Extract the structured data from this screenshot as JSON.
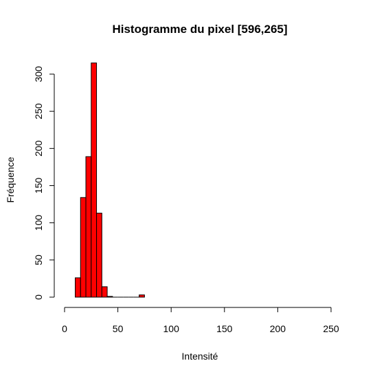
{
  "chart_data": {
    "type": "bar",
    "title": "Histogramme du pixel [596,265]",
    "xlabel": "Intensité",
    "ylabel": "Fréquence",
    "xlim": [
      0,
      250
    ],
    "ylim": [
      0,
      300
    ],
    "x_ticks": [
      0,
      50,
      100,
      150,
      200,
      250
    ],
    "y_ticks": [
      0,
      50,
      100,
      150,
      200,
      250,
      300
    ],
    "bar_color": "#ff0000",
    "bins": [
      {
        "start": 10,
        "end": 15,
        "count": 26
      },
      {
        "start": 15,
        "end": 20,
        "count": 134
      },
      {
        "start": 20,
        "end": 25,
        "count": 189
      },
      {
        "start": 25,
        "end": 30,
        "count": 315
      },
      {
        "start": 30,
        "end": 35,
        "count": 113
      },
      {
        "start": 35,
        "end": 40,
        "count": 14
      },
      {
        "start": 40,
        "end": 45,
        "count": 1
      },
      {
        "start": 45,
        "end": 50,
        "count": 0
      },
      {
        "start": 50,
        "end": 55,
        "count": 0
      },
      {
        "start": 55,
        "end": 60,
        "count": 0
      },
      {
        "start": 60,
        "end": 65,
        "count": 0
      },
      {
        "start": 65,
        "end": 70,
        "count": 0
      },
      {
        "start": 70,
        "end": 75,
        "count": 3
      }
    ],
    "grid": false,
    "legend": "none"
  }
}
